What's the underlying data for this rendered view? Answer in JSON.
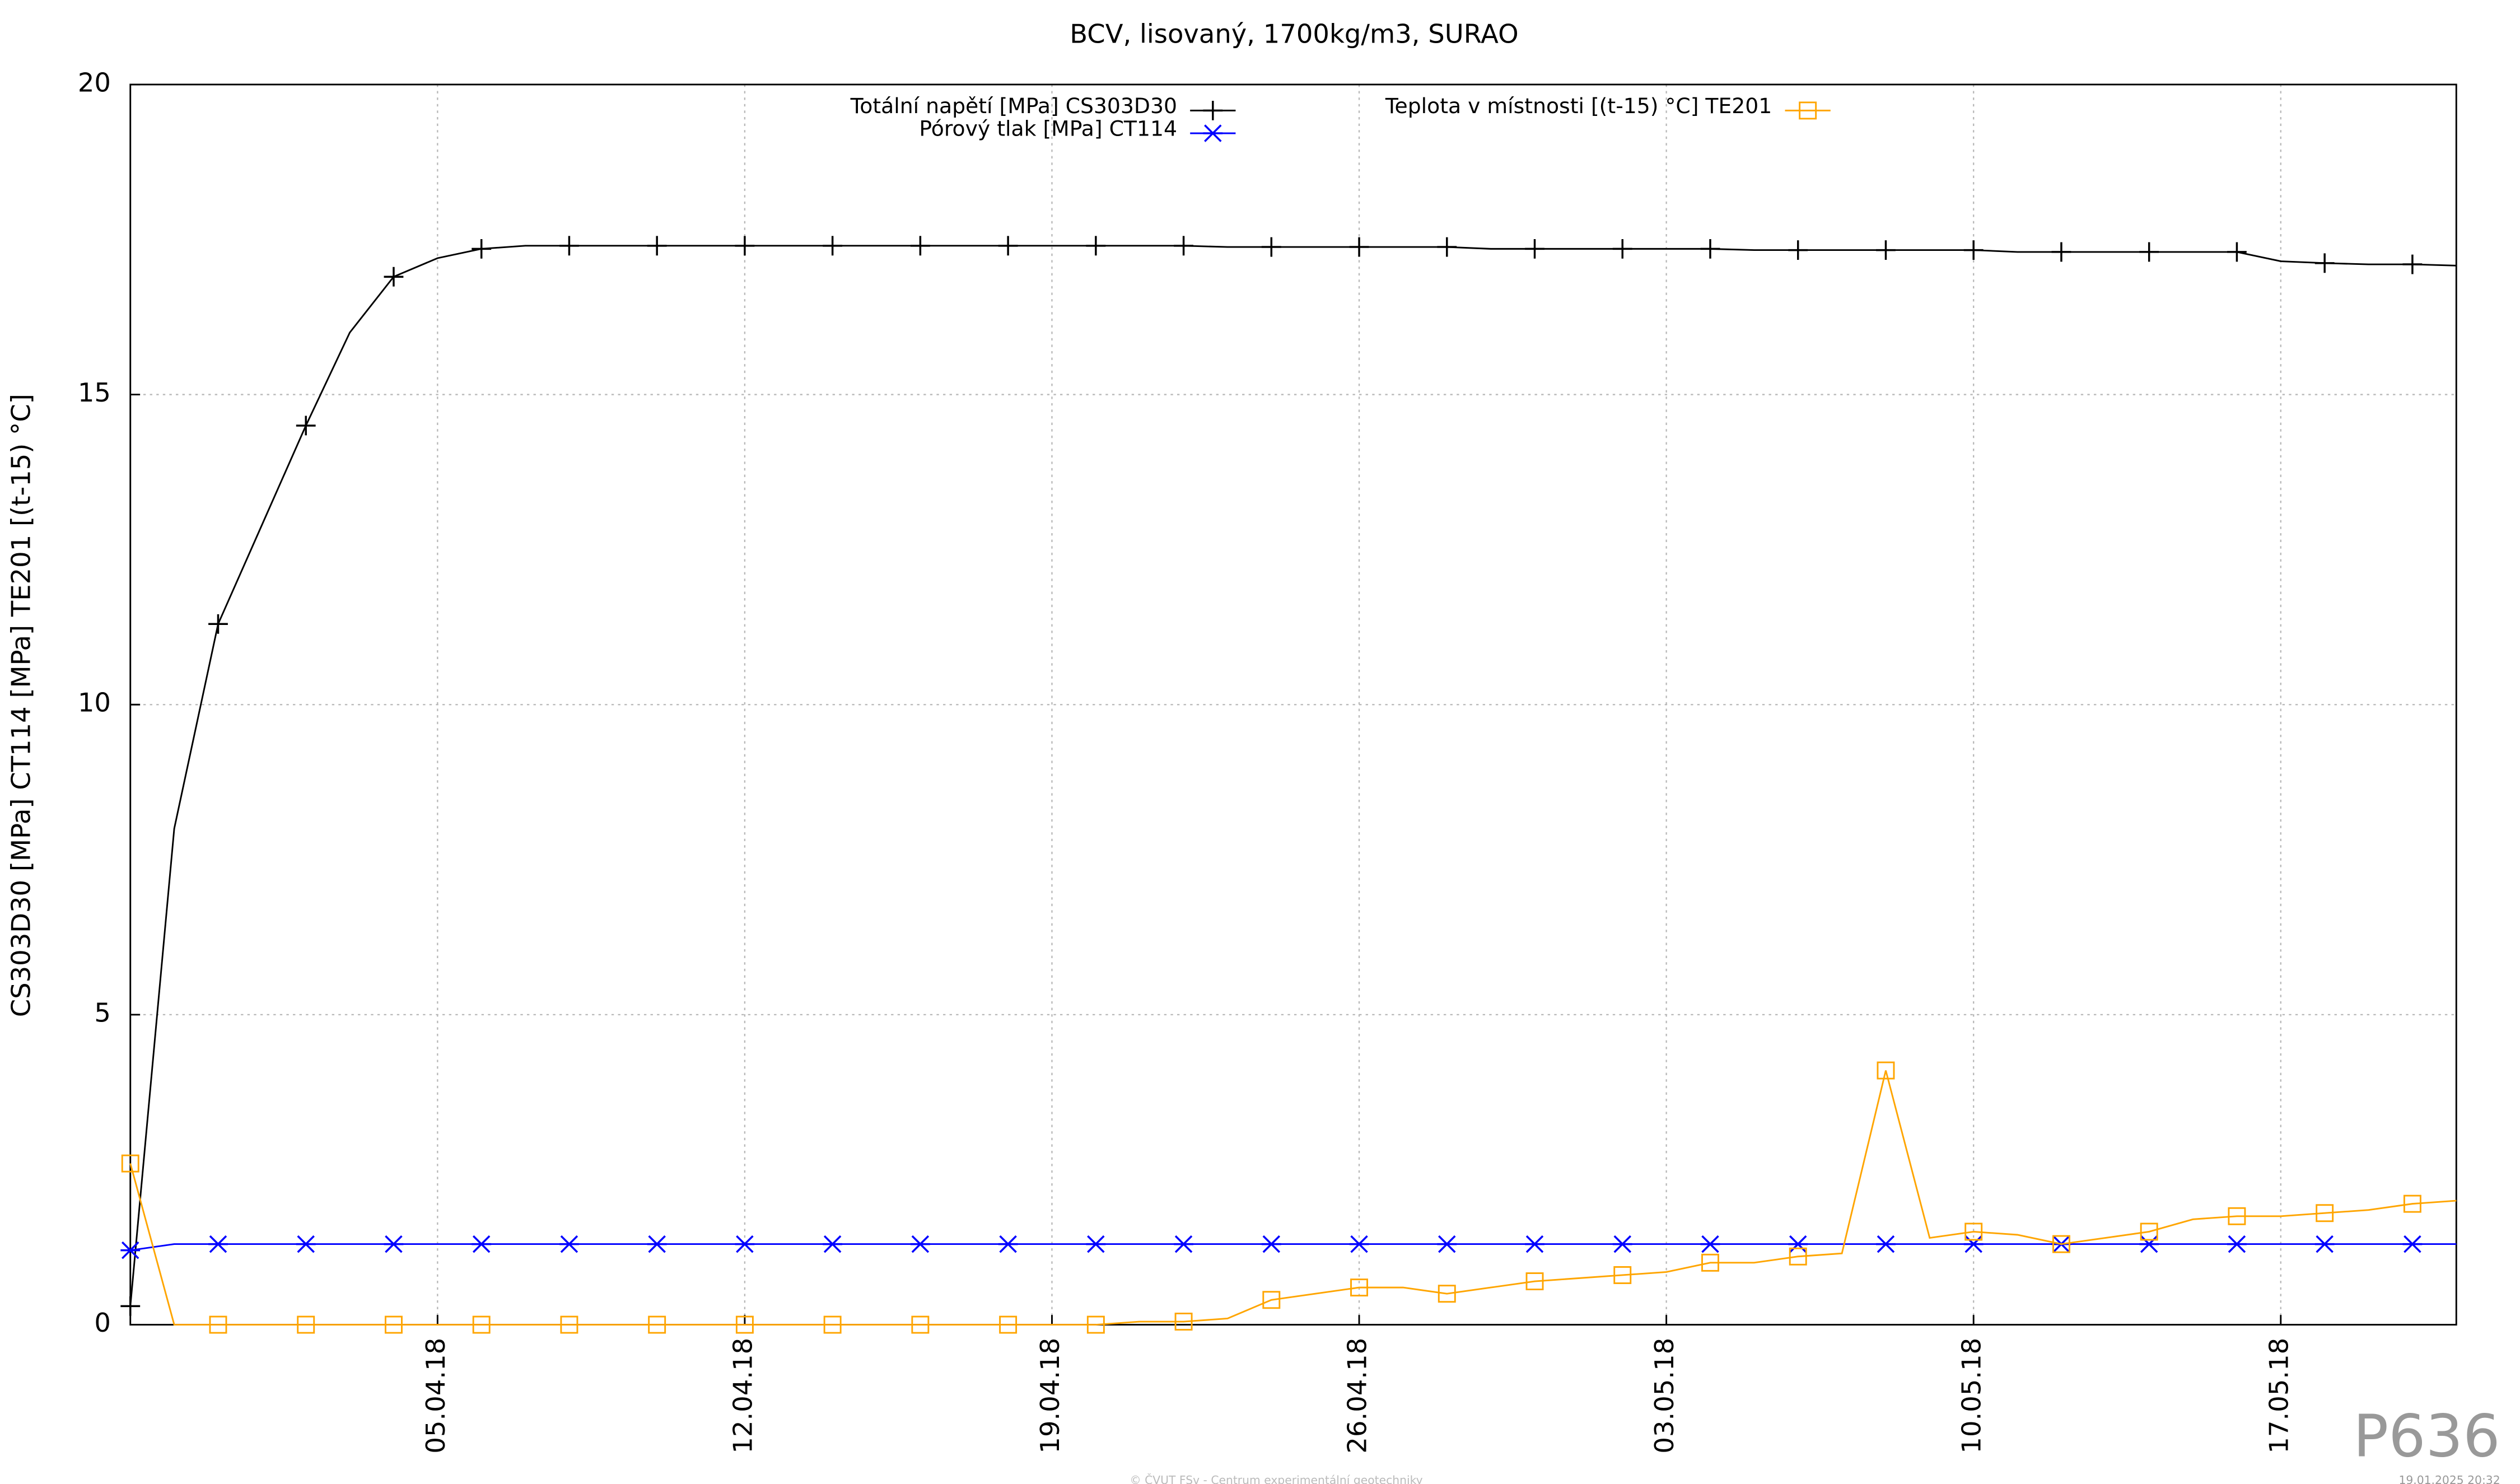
{
  "chart_data": {
    "type": "line",
    "title": "BCV, lisovaný, 1700kg/m3, SURAO",
    "y_label": "CS303D30 [MPa] CT114 [MPa] TE201 [(t-15) °C]",
    "watermark": "P636",
    "footer": "© ČVUT FSv - Centrum experimentální geotechniky",
    "timestamp": "19.01.2025 20:32",
    "x": [
      "2018-03-29",
      "2018-03-30",
      "2018-03-31",
      "2018-04-01",
      "2018-04-02",
      "2018-04-03",
      "2018-04-04",
      "2018-04-05",
      "2018-04-06",
      "2018-04-07",
      "2018-04-08",
      "2018-04-09",
      "2018-04-10",
      "2018-04-11",
      "2018-04-12",
      "2018-04-13",
      "2018-04-14",
      "2018-04-15",
      "2018-04-16",
      "2018-04-17",
      "2018-04-18",
      "2018-04-19",
      "2018-04-20",
      "2018-04-21",
      "2018-04-22",
      "2018-04-23",
      "2018-04-24",
      "2018-04-25",
      "2018-04-26",
      "2018-04-27",
      "2018-04-28",
      "2018-04-29",
      "2018-04-30",
      "2018-05-01",
      "2018-05-02",
      "2018-05-03",
      "2018-05-04",
      "2018-05-05",
      "2018-05-06",
      "2018-05-07",
      "2018-05-08",
      "2018-05-09",
      "2018-05-10",
      "2018-05-11",
      "2018-05-12",
      "2018-05-13",
      "2018-05-14",
      "2018-05-15",
      "2018-05-16",
      "2018-05-17",
      "2018-05-18",
      "2018-05-19",
      "2018-05-20",
      "2018-05-21"
    ],
    "series": [
      {
        "name": "Totální napětí [MPa] CS303D30",
        "color": "#000000",
        "marker": "plus",
        "values": [
          0.3,
          8.0,
          11.3,
          12.9,
          14.5,
          16.0,
          16.9,
          17.2,
          17.35,
          17.4,
          17.4,
          17.4,
          17.4,
          17.4,
          17.4,
          17.4,
          17.4,
          17.4,
          17.4,
          17.4,
          17.4,
          17.4,
          17.4,
          17.4,
          17.4,
          17.38,
          17.38,
          17.38,
          17.38,
          17.38,
          17.38,
          17.35,
          17.35,
          17.35,
          17.35,
          17.35,
          17.35,
          17.33,
          17.33,
          17.33,
          17.33,
          17.33,
          17.33,
          17.3,
          17.3,
          17.3,
          17.3,
          17.3,
          17.3,
          17.15,
          17.12,
          17.1,
          17.1,
          17.08
        ]
      },
      {
        "name": "Pórový tlak [MPa] CT114",
        "color": "#0000ff",
        "marker": "star",
        "values": [
          1.2,
          1.3,
          1.3,
          1.3,
          1.3,
          1.3,
          1.3,
          1.3,
          1.3,
          1.3,
          1.3,
          1.3,
          1.3,
          1.3,
          1.3,
          1.3,
          1.3,
          1.3,
          1.3,
          1.3,
          1.3,
          1.3,
          1.3,
          1.3,
          1.3,
          1.3,
          1.3,
          1.3,
          1.3,
          1.3,
          1.3,
          1.3,
          1.3,
          1.3,
          1.3,
          1.3,
          1.3,
          1.3,
          1.3,
          1.3,
          1.3,
          1.3,
          1.3,
          1.3,
          1.3,
          1.3,
          1.3,
          1.3,
          1.3,
          1.3,
          1.3,
          1.3,
          1.3,
          1.3
        ]
      },
      {
        "name": "Teplota v místnosti [(t-15) °C] TE201",
        "color": "#ffa500",
        "marker": "square",
        "values": [
          2.6,
          0,
          0,
          0,
          0,
          0,
          0,
          0,
          0,
          0,
          0,
          0,
          0,
          0,
          0,
          0,
          0,
          0,
          0,
          0,
          0,
          0,
          0,
          0.05,
          0.05,
          0.1,
          0.4,
          0.5,
          0.6,
          0.6,
          0.5,
          0.6,
          0.7,
          0.75,
          0.8,
          0.85,
          1.0,
          1.0,
          1.1,
          1.15,
          4.1,
          1.4,
          1.5,
          1.45,
          1.3,
          1.4,
          1.5,
          1.7,
          1.75,
          1.75,
          1.8,
          1.85,
          1.95,
          2.0
        ]
      }
    ],
    "xlim": [
      "2018-03-29",
      "2018-05-21"
    ],
    "xticks": [
      {
        "value": "2018-04-05",
        "label": "05.04.18"
      },
      {
        "value": "2018-04-12",
        "label": "12.04.18"
      },
      {
        "value": "2018-04-19",
        "label": "19.04.18"
      },
      {
        "value": "2018-04-26",
        "label": "26.04.18"
      },
      {
        "value": "2018-05-03",
        "label": "03.05.18"
      },
      {
        "value": "2018-05-10",
        "label": "10.05.18"
      },
      {
        "value": "2018-05-17",
        "label": "17.05.18"
      }
    ],
    "ylim": [
      0,
      20
    ],
    "yticks": [
      0,
      5,
      10,
      15,
      20
    ],
    "grid": true,
    "legend": "top"
  }
}
